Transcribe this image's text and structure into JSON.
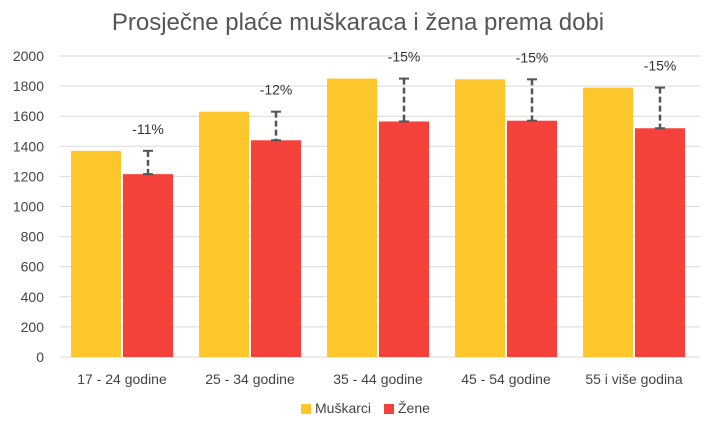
{
  "chart_data": {
    "type": "bar",
    "title": "Prosječne plaće muškaraca i žena prema dobi",
    "categories": [
      "17 - 24 godine",
      "25 - 34 godine",
      "35 - 44 godine",
      "45 - 54 godine",
      "55 i više godina"
    ],
    "series": [
      {
        "name": "Muškarci",
        "color": "#FFC72C",
        "values": [
          1370,
          1630,
          1850,
          1845,
          1790
        ]
      },
      {
        "name": "Žene",
        "color": "#F5413B",
        "values": [
          1215,
          1440,
          1565,
          1570,
          1520
        ]
      }
    ],
    "gap_labels": [
      "-11%",
      "-12%",
      "-15%",
      "-15%",
      "-15%"
    ],
    "ylim": [
      0,
      2000
    ],
    "yticks": [
      0,
      200,
      400,
      600,
      800,
      1000,
      1200,
      1400,
      1600,
      1800,
      2000
    ],
    "grid": true,
    "legend_position": "bottom",
    "error_bar_color": "#555555"
  }
}
